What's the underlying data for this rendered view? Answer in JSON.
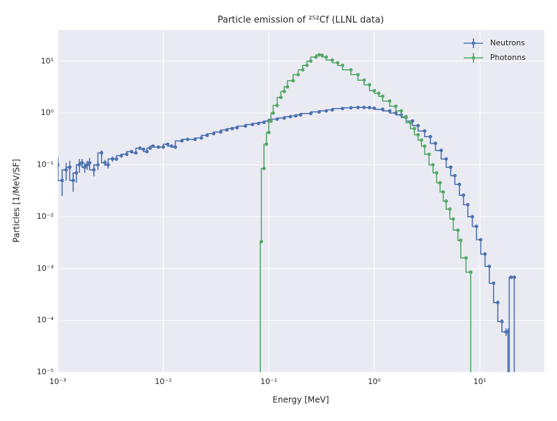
{
  "chart_data": {
    "type": "step-errorbar",
    "title": "Particle emission of ²⁵²Cf (LLNL data)",
    "x_label": "Energy [MeV]",
    "y_label": "Particles [1/MeV/SF]",
    "x_scale": "log",
    "y_scale": "log",
    "grid": true,
    "legend": "upper right",
    "xlim": [
      0.001,
      41
    ],
    "ylim": [
      1e-05,
      40
    ],
    "xticks": [
      {
        "value": 0.001,
        "label": "10⁻³"
      },
      {
        "value": 0.01,
        "label": "10⁻²"
      },
      {
        "value": 0.1,
        "label": "10⁻¹"
      },
      {
        "value": 1,
        "label": "10⁰"
      },
      {
        "value": 10,
        "label": "10¹"
      }
    ],
    "yticks": [
      {
        "value": 1e-05,
        "label": "10⁻⁵"
      },
      {
        "value": 0.0001,
        "label": "10⁻⁴"
      },
      {
        "value": 0.001,
        "label": "10⁻³"
      },
      {
        "value": 0.01,
        "label": "10⁻²"
      },
      {
        "value": 0.1,
        "label": "10⁻¹"
      },
      {
        "value": 1,
        "label": "10⁰"
      },
      {
        "value": 10,
        "label": "10¹"
      }
    ],
    "series": [
      {
        "name": "Neutrons",
        "color": "#4c72b0",
        "x": [
          0.001,
          0.0011,
          0.0012,
          0.0013,
          0.0014,
          0.0015,
          0.0016,
          0.0017,
          0.0018,
          0.0019,
          0.002,
          0.0022,
          0.0024,
          0.0026,
          0.0028,
          0.003,
          0.0033,
          0.0036,
          0.004,
          0.0045,
          0.005,
          0.0055,
          0.006,
          0.0065,
          0.007,
          0.0075,
          0.008,
          0.009,
          0.01,
          0.011,
          0.012,
          0.013,
          0.015,
          0.017,
          0.02,
          0.023,
          0.026,
          0.03,
          0.035,
          0.04,
          0.045,
          0.05,
          0.06,
          0.07,
          0.08,
          0.09,
          0.1,
          0.12,
          0.14,
          0.16,
          0.18,
          0.2,
          0.25,
          0.3,
          0.35,
          0.4,
          0.5,
          0.6,
          0.7,
          0.8,
          0.9,
          1.0,
          1.2,
          1.4,
          1.6,
          1.8,
          2.0,
          2.3,
          2.6,
          3.0,
          3.4,
          3.8,
          4.3,
          4.8,
          5.3,
          5.8,
          6.4,
          7.0,
          7.7,
          8.5,
          9.3,
          10.2,
          11.2,
          12.3,
          13.5,
          14.8,
          16.2,
          17.7,
          18.5,
          19.0,
          19.8,
          21.2,
          22.5
        ],
        "values": [
          0.1,
          0.05,
          0.08,
          0.09,
          0.05,
          0.07,
          0.1,
          0.11,
          0.09,
          0.1,
          0.11,
          0.08,
          0.1,
          0.17,
          0.11,
          0.1,
          0.13,
          0.13,
          0.15,
          0.16,
          0.18,
          0.17,
          0.21,
          0.2,
          0.18,
          0.21,
          0.23,
          0.22,
          0.22,
          0.25,
          0.23,
          0.22,
          0.29,
          0.31,
          0.31,
          0.33,
          0.37,
          0.4,
          0.43,
          0.47,
          0.5,
          0.52,
          0.56,
          0.6,
          0.63,
          0.66,
          0.7,
          0.76,
          0.8,
          0.85,
          0.88,
          0.92,
          0.98,
          1.05,
          1.1,
          1.15,
          1.22,
          1.26,
          1.28,
          1.28,
          1.27,
          1.24,
          1.18,
          1.1,
          1.0,
          0.92,
          0.82,
          0.7,
          0.57,
          0.45,
          0.35,
          0.26,
          0.19,
          0.13,
          0.09,
          0.062,
          0.042,
          0.026,
          0.017,
          0.01,
          0.0065,
          0.0036,
          0.0019,
          0.0011,
          0.00052,
          0.00022,
          9.5e-05,
          6e-05,
          6e-05,
          0,
          0.00068,
          0.00068,
          0
        ],
        "errors": [
          0.04,
          0.025,
          0.03,
          0.03,
          0.02,
          0.025,
          0.03,
          0.02,
          0.02,
          0.02,
          0.025,
          0.02,
          0.02,
          0.02,
          0.015,
          0.015,
          0.015,
          0.012,
          0.012,
          0.012,
          0.01,
          0.01,
          0.01,
          0.01,
          0.01,
          0.01,
          0.01,
          0.01,
          0.008,
          0.008,
          0.008,
          0.008,
          0.006,
          0.006,
          0.006,
          0.006,
          0.006,
          0.006,
          0.006,
          0.006,
          0.006,
          0.006,
          0.006,
          0.006,
          0.006,
          0.006,
          0.006,
          0.006,
          0.006,
          0.006,
          0.006,
          0.006,
          0.006,
          0.006,
          0.006,
          0.006,
          0.006,
          0.006,
          0.006,
          0.006,
          0.006,
          0.006,
          0.006,
          0.006,
          0.006,
          0.006,
          0.006,
          0.005,
          0.005,
          0.004,
          0.004,
          0.003,
          0.003,
          0.002,
          0.002,
          0.001,
          0.001,
          0.0005,
          0.0005,
          0.0003,
          0.0002,
          0.0001,
          0.0001,
          5e-05,
          3e-05,
          2e-05,
          1e-05,
          1e-05,
          1e-05,
          0,
          5e-05,
          5e-05,
          0
        ]
      },
      {
        "name": "Photonns",
        "color": "#55a868",
        "x": [
          0.083,
          0.085,
          0.09,
          0.095,
          0.1,
          0.105,
          0.11,
          0.12,
          0.13,
          0.14,
          0.15,
          0.17,
          0.19,
          0.21,
          0.23,
          0.25,
          0.28,
          0.3,
          0.32,
          0.35,
          0.4,
          0.45,
          0.5,
          0.6,
          0.7,
          0.8,
          0.9,
          1.0,
          1.1,
          1.2,
          1.4,
          1.6,
          1.8,
          2.0,
          2.2,
          2.4,
          2.6,
          2.8,
          3.0,
          3.3,
          3.6,
          3.9,
          4.2,
          4.5,
          4.8,
          5.2,
          5.6,
          6.2,
          6.6,
          7.4,
          8.2,
          8.4
        ],
        "values": [
          0,
          0.0033,
          0.085,
          0.25,
          0.42,
          0.7,
          1.0,
          1.4,
          2.0,
          2.6,
          3.2,
          4.2,
          5.5,
          6.8,
          8.3,
          10,
          12,
          13.2,
          13,
          12,
          10.5,
          9.3,
          8.3,
          6.8,
          5.5,
          4.3,
          3.5,
          2.7,
          2.4,
          2.1,
          1.7,
          1.35,
          1.1,
          0.85,
          0.65,
          0.5,
          0.38,
          0.3,
          0.23,
          0.16,
          0.1,
          0.07,
          0.045,
          0.03,
          0.02,
          0.014,
          0.009,
          0.0055,
          0.0035,
          0.0016,
          0.00085,
          0
        ]
      }
    ]
  }
}
